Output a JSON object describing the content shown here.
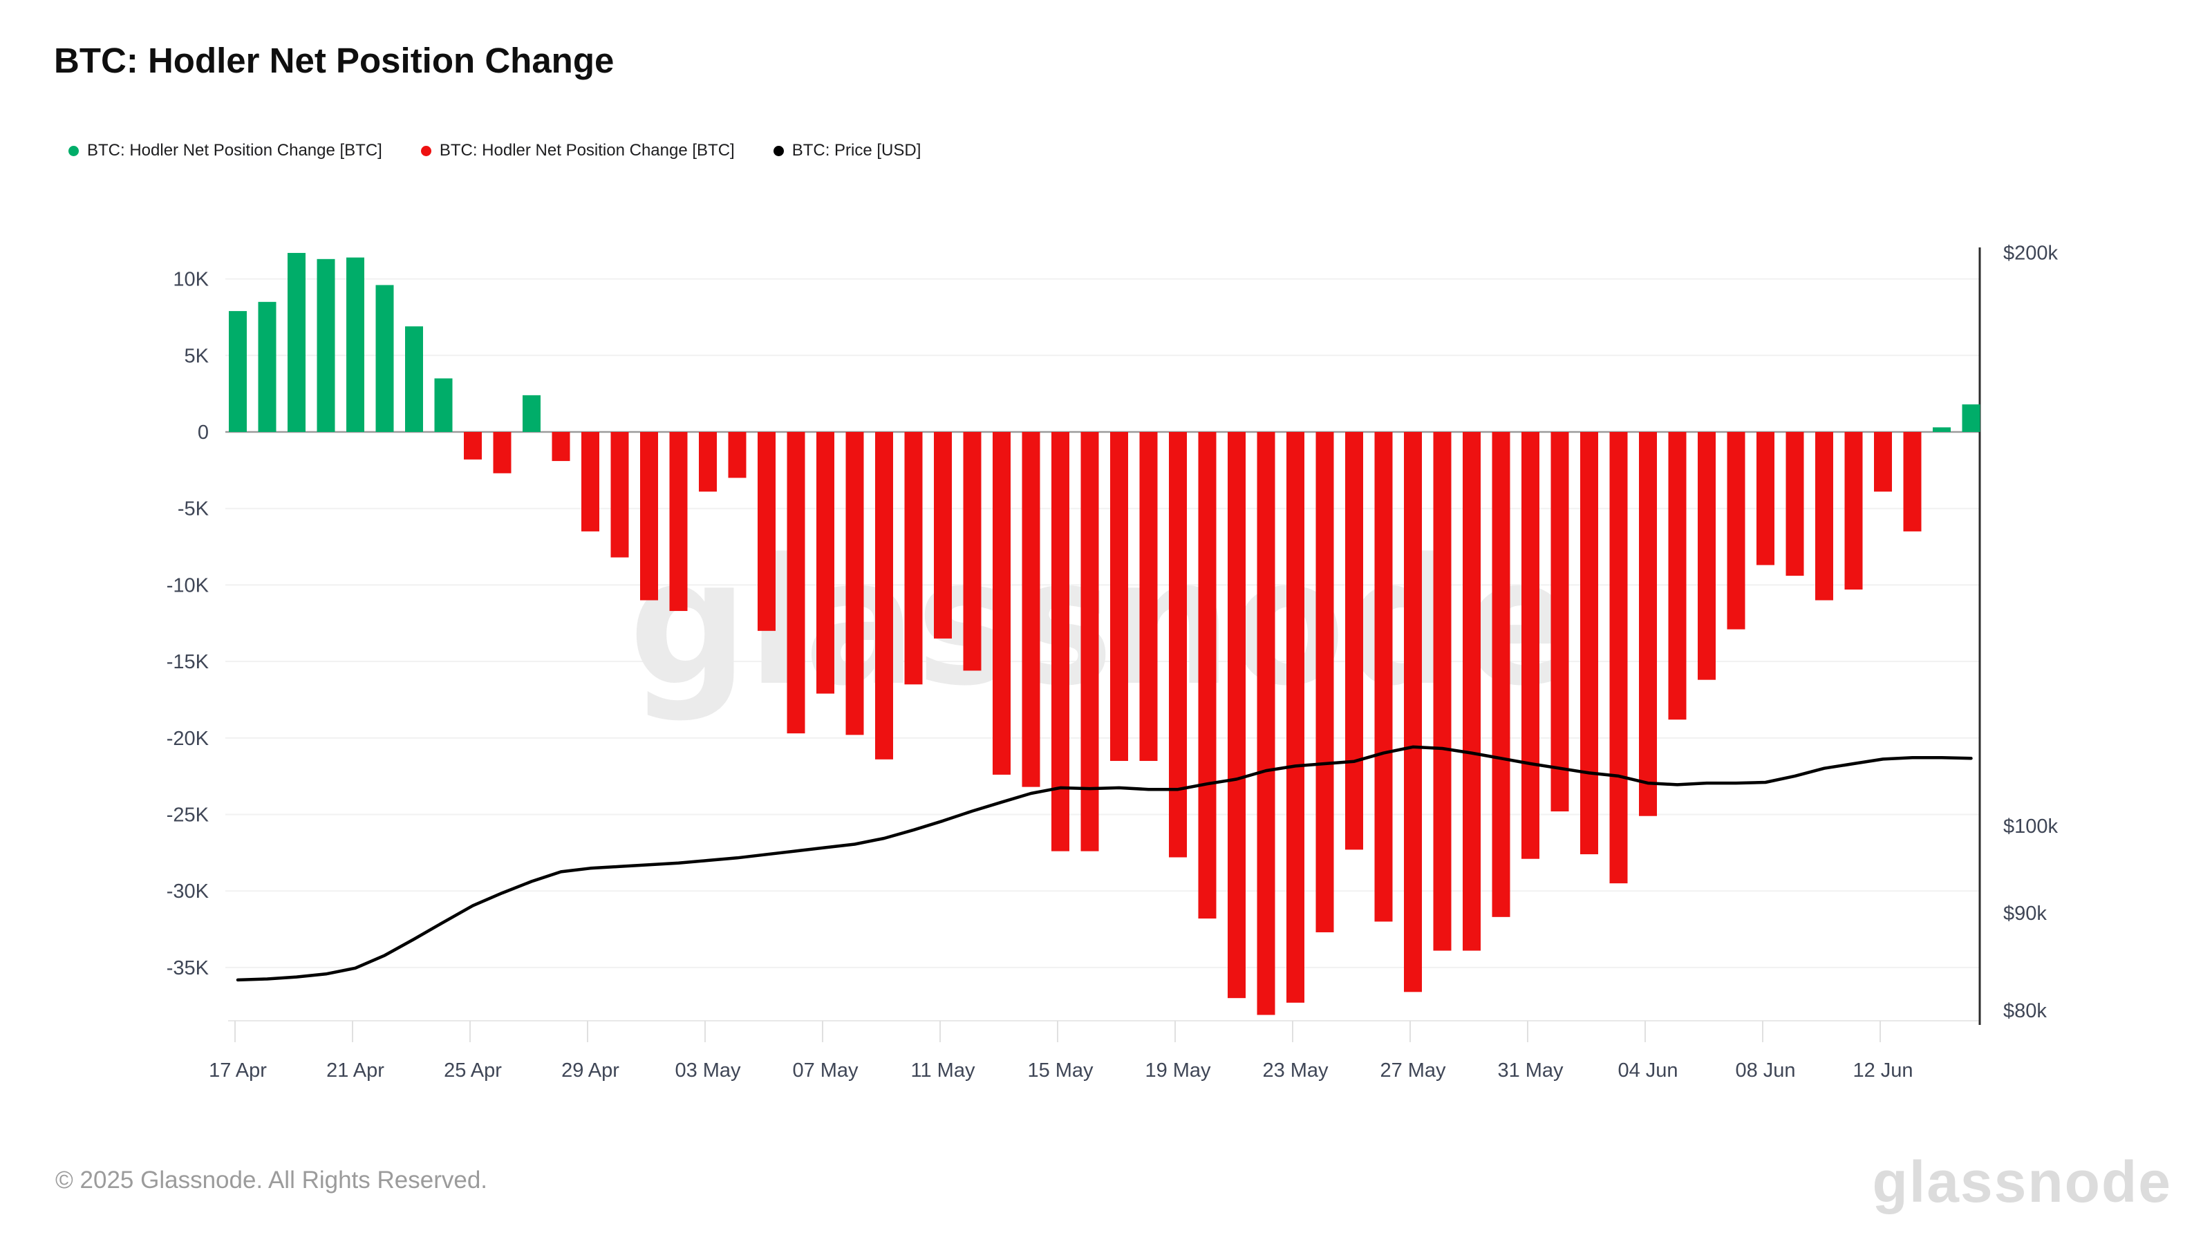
{
  "header": {
    "title": "BTC: Hodler Net Position Change"
  },
  "legend": {
    "items": [
      {
        "label": "BTC: Hodler Net Position Change [BTC]",
        "color": "#00ad69",
        "icon": "legend-dot-green"
      },
      {
        "label": "BTC: Hodler Net Position Change [BTC]",
        "color": "#ee1111",
        "icon": "legend-dot-red"
      },
      {
        "label": "BTC: Price [USD]",
        "color": "#000000",
        "icon": "legend-dot-black"
      }
    ]
  },
  "watermark": {
    "text": "glassnode",
    "color": "#ebebeb"
  },
  "footer": {
    "copyright": "© 2025 Glassnode. All Rights Reserved.",
    "logo_text": "glassnode"
  },
  "chart_data": {
    "type": "bar",
    "title": "BTC: Hodler Net Position Change",
    "x": [
      "17 Apr",
      "18 Apr",
      "19 Apr",
      "20 Apr",
      "21 Apr",
      "22 Apr",
      "23 Apr",
      "24 Apr",
      "25 Apr",
      "26 Apr",
      "27 Apr",
      "28 Apr",
      "29 Apr",
      "30 Apr",
      "01 May",
      "02 May",
      "03 May",
      "04 May",
      "05 May",
      "06 May",
      "07 May",
      "08 May",
      "09 May",
      "10 May",
      "11 May",
      "12 May",
      "13 May",
      "14 May",
      "15 May",
      "16 May",
      "17 May",
      "18 May",
      "19 May",
      "20 May",
      "21 May",
      "22 May",
      "23 May",
      "24 May",
      "25 May",
      "26 May",
      "27 May",
      "28 May",
      "29 May",
      "30 May",
      "31 May",
      "01 Jun",
      "02 Jun",
      "03 Jun",
      "04 Jun",
      "05 Jun",
      "06 Jun",
      "07 Jun",
      "08 Jun",
      "09 Jun",
      "10 Jun",
      "11 Jun",
      "12 Jun",
      "13 Jun",
      "14 Jun",
      "15 Jun"
    ],
    "series": [
      {
        "name": "BTC: Hodler Net Position Change [BTC]",
        "type": "bar",
        "unit": "K BTC",
        "values": [
          7.9,
          8.5,
          11.7,
          11.3,
          11.4,
          9.6,
          6.9,
          3.5,
          -1.8,
          -2.7,
          2.4,
          -1.9,
          -6.5,
          -8.2,
          -11.0,
          -11.7,
          -3.9,
          -3.0,
          -13.0,
          -19.7,
          -17.1,
          -19.8,
          -21.4,
          -16.5,
          -13.5,
          -15.6,
          -22.4,
          -23.2,
          -27.4,
          -27.4,
          -21.5,
          -21.5,
          -27.8,
          -31.8,
          -37.0,
          -38.1,
          -37.3,
          -32.7,
          -27.3,
          -32.0,
          -36.6,
          -33.9,
          -33.9,
          -31.7,
          -27.9,
          -24.8,
          -27.6,
          -29.5,
          -25.1,
          -18.8,
          -16.2,
          -12.9,
          -8.7,
          -9.4,
          -11.0,
          -10.3,
          -3.9,
          -6.5,
          0.3,
          1.8
        ]
      },
      {
        "name": "BTC: Price [USD]",
        "type": "line",
        "unit": "K USD",
        "values": [
          83.0,
          83.1,
          83.3,
          83.6,
          84.2,
          85.5,
          87.2,
          89.0,
          90.8,
          92.2,
          93.5,
          94.6,
          95.0,
          95.2,
          95.4,
          95.6,
          95.9,
          96.2,
          96.6,
          97.0,
          97.4,
          97.8,
          98.5,
          99.5,
          100.6,
          101.8,
          102.9,
          104.0,
          104.7,
          104.6,
          104.7,
          104.5,
          104.5,
          105.2,
          105.8,
          106.9,
          107.5,
          107.8,
          108.1,
          109.2,
          110.0,
          109.8,
          109.2,
          108.5,
          107.8,
          107.2,
          106.6,
          106.2,
          105.3,
          105.1,
          105.3,
          105.3,
          105.4,
          106.2,
          107.2,
          107.8,
          108.4,
          108.6,
          108.6,
          108.5
        ]
      }
    ],
    "left_axis": {
      "ticks_k": [
        10,
        5,
        0,
        -5,
        -10,
        -15,
        -20,
        -25,
        -30,
        -35
      ],
      "tick_labels": [
        "10K",
        "5K",
        "0",
        "-5K",
        "-10K",
        "-15K",
        "-20K",
        "-25K",
        "-30K",
        "-35K"
      ],
      "ylim_k": [
        -39,
        12
      ],
      "grid": true
    },
    "right_axis": {
      "values_k": [
        200,
        100,
        90,
        80
      ],
      "labels": [
        "$200k",
        "$100k",
        "$90k",
        "$80k"
      ],
      "scale": "log"
    },
    "x_tick_labels": [
      "17 Apr",
      "21 Apr",
      "25 Apr",
      "29 Apr",
      "03 May",
      "07 May",
      "11 May",
      "15 May",
      "19 May",
      "23 May",
      "27 May",
      "31 May",
      "04 Jun",
      "08 Jun",
      "12 Jun"
    ],
    "bar_colors": {
      "positive": "#00ad69",
      "negative": "#ee1111"
    },
    "line_color": "#000000",
    "grid_color": "#f1f1f1",
    "zero_line_color": "#9b9b9b",
    "axis_text_color": "#3f4656",
    "legend_position": "top-left"
  }
}
